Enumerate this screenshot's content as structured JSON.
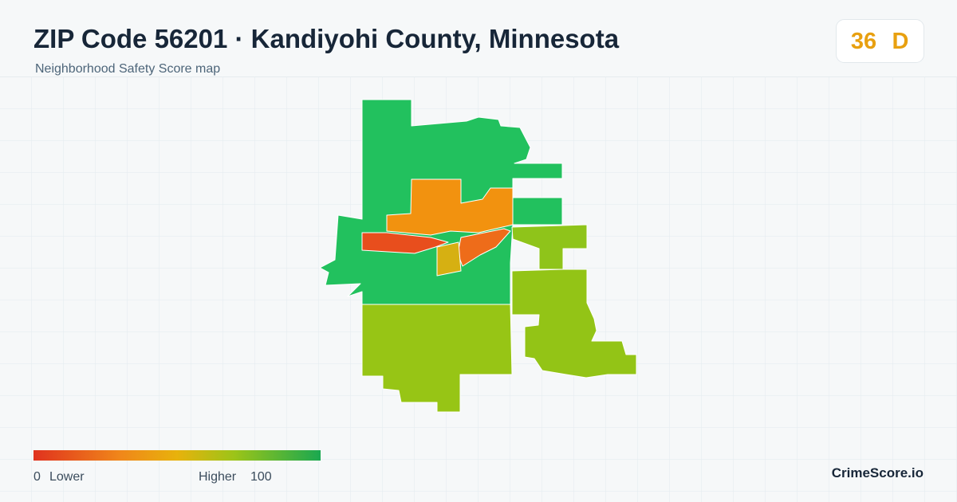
{
  "header": {
    "title": "ZIP Code 56201 · Kandiyohi County, Minnesota",
    "subtitle": "Neighborhood Safety Score map"
  },
  "score": {
    "value": 36,
    "grade": "D"
  },
  "legend": {
    "min": 0,
    "min_label": "Lower",
    "max_label": "Higher",
    "max": 100
  },
  "footer": {
    "brand": "CrimeScore.io"
  }
}
